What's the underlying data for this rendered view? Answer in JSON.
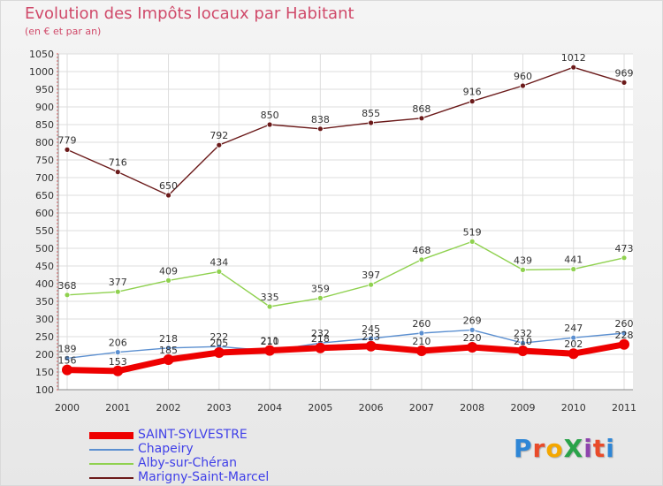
{
  "title": "Evolution des Impôts locaux par Habitant",
  "subtitle": "(en € et par an)",
  "logo_text": "ProXiti",
  "logo_colors": [
    "#2e86d6",
    "#e94b2a",
    "#f4a700",
    "#2aa34a",
    "#8e44ad",
    "#e94b2a",
    "#2e86d6"
  ],
  "chart_data": {
    "type": "line",
    "x": [
      2000,
      2001,
      2002,
      2003,
      2004,
      2005,
      2006,
      2007,
      2008,
      2009,
      2010,
      2011
    ],
    "ylim": [
      100,
      1050
    ],
    "yticks": [
      100,
      150,
      200,
      250,
      300,
      350,
      400,
      450,
      500,
      550,
      600,
      650,
      700,
      750,
      800,
      850,
      900,
      950,
      1000,
      1050
    ],
    "grid": true,
    "legend_position": "bottom-left",
    "series": [
      {
        "name": "Marigny-Saint-Marcel",
        "color": "#6b1a1a",
        "values": [
          779,
          716,
          650,
          792,
          850,
          838,
          855,
          868,
          916,
          960,
          1012,
          969
        ]
      },
      {
        "name": "Alby-sur-Chéran",
        "color": "#8fd14f",
        "values": [
          368,
          377,
          409,
          434,
          335,
          359,
          397,
          468,
          519,
          439,
          441,
          473
        ]
      },
      {
        "name": "Chapeiry",
        "color": "#5b8fd0",
        "values": [
          189,
          206,
          218,
          222,
          210,
          232,
          245,
          260,
          269,
          232,
          247,
          260
        ]
      },
      {
        "name": "SAINT-SYLVESTRE",
        "color": "#ee0000",
        "values": [
          156,
          153,
          185,
          205,
          211,
          218,
          223,
          210,
          220,
          210,
          202,
          228
        ]
      }
    ],
    "data_labels": {
      "Marigny-Saint-Marcel": [
        "779",
        "716",
        "650",
        "792",
        "850",
        "838",
        "855",
        "868",
        "916",
        "960",
        "1012",
        "969"
      ],
      "Alby-sur-Chéran": [
        "368",
        "377",
        "409",
        "434",
        "335",
        "359",
        "397",
        "468",
        "519",
        "439",
        "441",
        "473"
      ],
      "Chapeiry": [
        "189",
        "206",
        "218",
        "222",
        "210",
        "232",
        "245",
        "260",
        "269",
        "232",
        "247",
        "260"
      ],
      "SAINT-SYLVESTRE": [
        "156",
        "153",
        "185",
        "205",
        "211",
        "218",
        "223",
        "210",
        "220",
        "210",
        "202",
        "228"
      ]
    }
  },
  "legend": [
    {
      "label": "SAINT-SYLVESTRE",
      "color": "#ee0000",
      "thick": true
    },
    {
      "label": "Chapeiry",
      "color": "#5b8fd0",
      "thick": false
    },
    {
      "label": "Alby-sur-Chéran",
      "color": "#8fd14f",
      "thick": false
    },
    {
      "label": "Marigny-Saint-Marcel",
      "color": "#6b1a1a",
      "thick": false
    }
  ]
}
